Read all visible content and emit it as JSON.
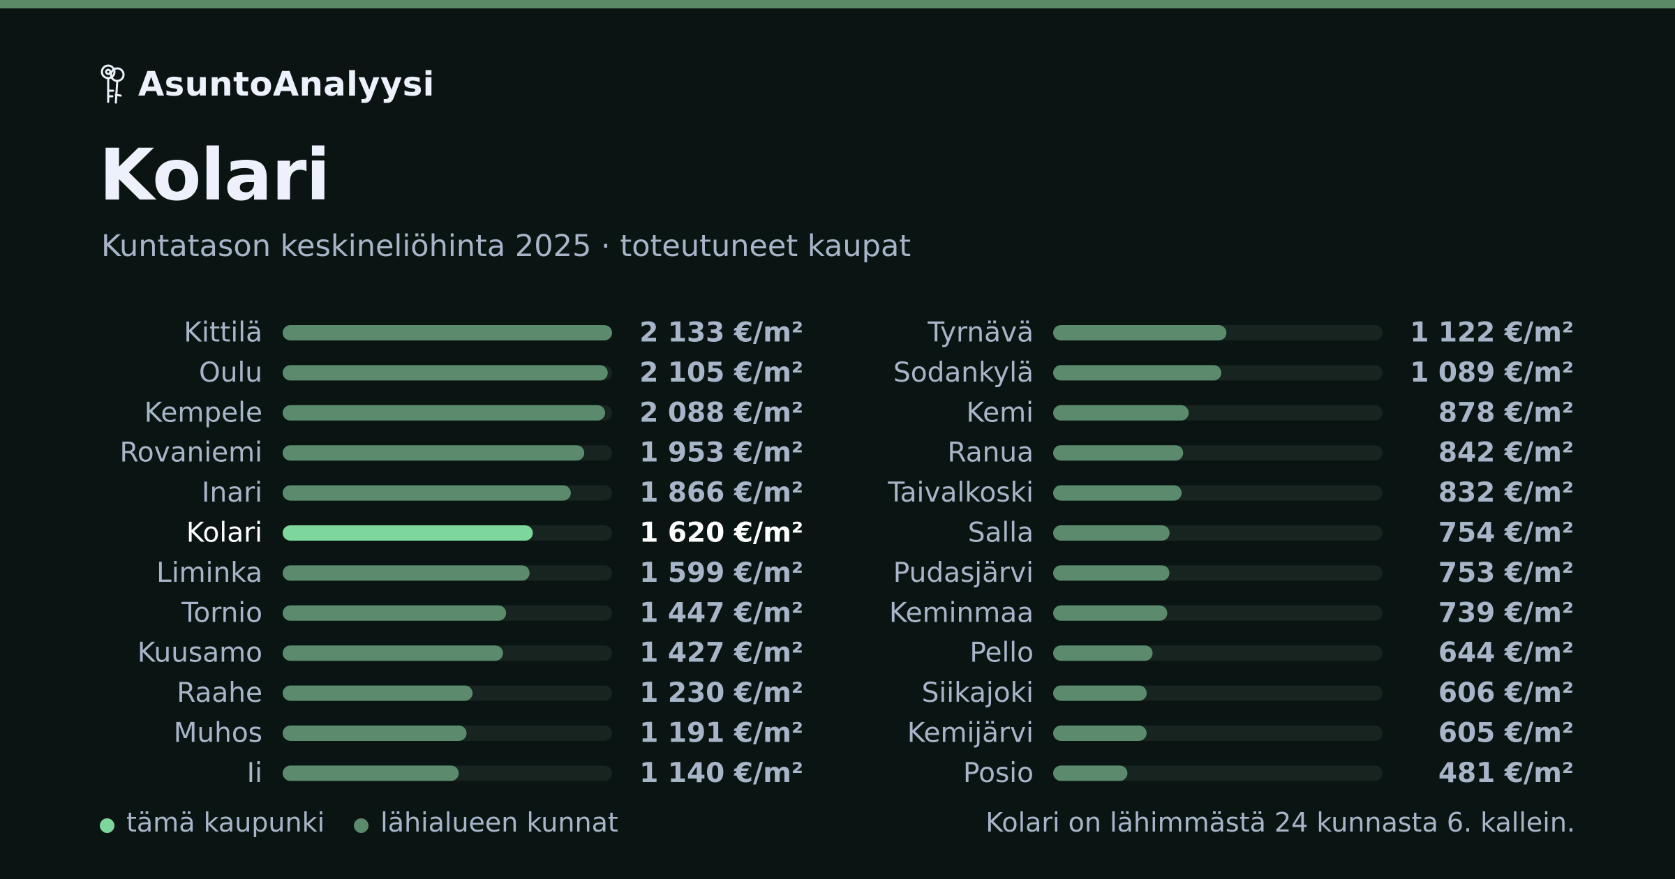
{
  "brand": {
    "name": "AsuntoAnalyysi",
    "icon": "keys-icon"
  },
  "title": "Kolari",
  "subtitle": "Kuntatason keskineliöhinta 2025 · toteutuneet kaupat",
  "colors": {
    "background": "#0a1513",
    "accent_stripe": "#5b8a66",
    "highlight_bar": "#7dd69b",
    "bar": "#5b8a6d",
    "track": "#18241f",
    "label": "#a8b4c8",
    "highlight_label": "#ffffff"
  },
  "chart_data": {
    "type": "bar",
    "orientation": "horizontal",
    "unit": "€/m²",
    "highlight": "Kolari",
    "xlim": [
      0,
      2133
    ],
    "categories": [
      "Kittilä",
      "Oulu",
      "Kempele",
      "Rovaniemi",
      "Inari",
      "Kolari",
      "Liminka",
      "Tornio",
      "Kuusamo",
      "Raahe",
      "Muhos",
      "Ii",
      "Tyrnävä",
      "Sodankylä",
      "Kemi",
      "Ranua",
      "Taivalkoski",
      "Salla",
      "Pudasjärvi",
      "Keminmaa",
      "Pello",
      "Siikajoki",
      "Kemijärvi",
      "Posio"
    ],
    "values": [
      2133,
      2105,
      2088,
      1953,
      1866,
      1620,
      1599,
      1447,
      1427,
      1230,
      1191,
      1140,
      1122,
      1089,
      878,
      842,
      832,
      754,
      753,
      739,
      644,
      606,
      605,
      481
    ],
    "value_labels": [
      "2 133 €/m²",
      "2 105 €/m²",
      "2 088 €/m²",
      "1 953 €/m²",
      "1 866 €/m²",
      "1 620 €/m²",
      "1 599 €/m²",
      "1 447 €/m²",
      "1 427 €/m²",
      "1 230 €/m²",
      "1 191 €/m²",
      "1 140 €/m²",
      "1 122 €/m²",
      "1 089 €/m²",
      "878 €/m²",
      "842 €/m²",
      "832 €/m²",
      "754 €/m²",
      "753 €/m²",
      "739 €/m²",
      "644 €/m²",
      "606 €/m²",
      "605 €/m²",
      "481 €/m²"
    ]
  },
  "legend": {
    "this_city": "tämä kaupunki",
    "nearby": "lähialueen kunnat"
  },
  "footnote": "Kolari on lähimmästä 24 kunnasta 6. kallein."
}
